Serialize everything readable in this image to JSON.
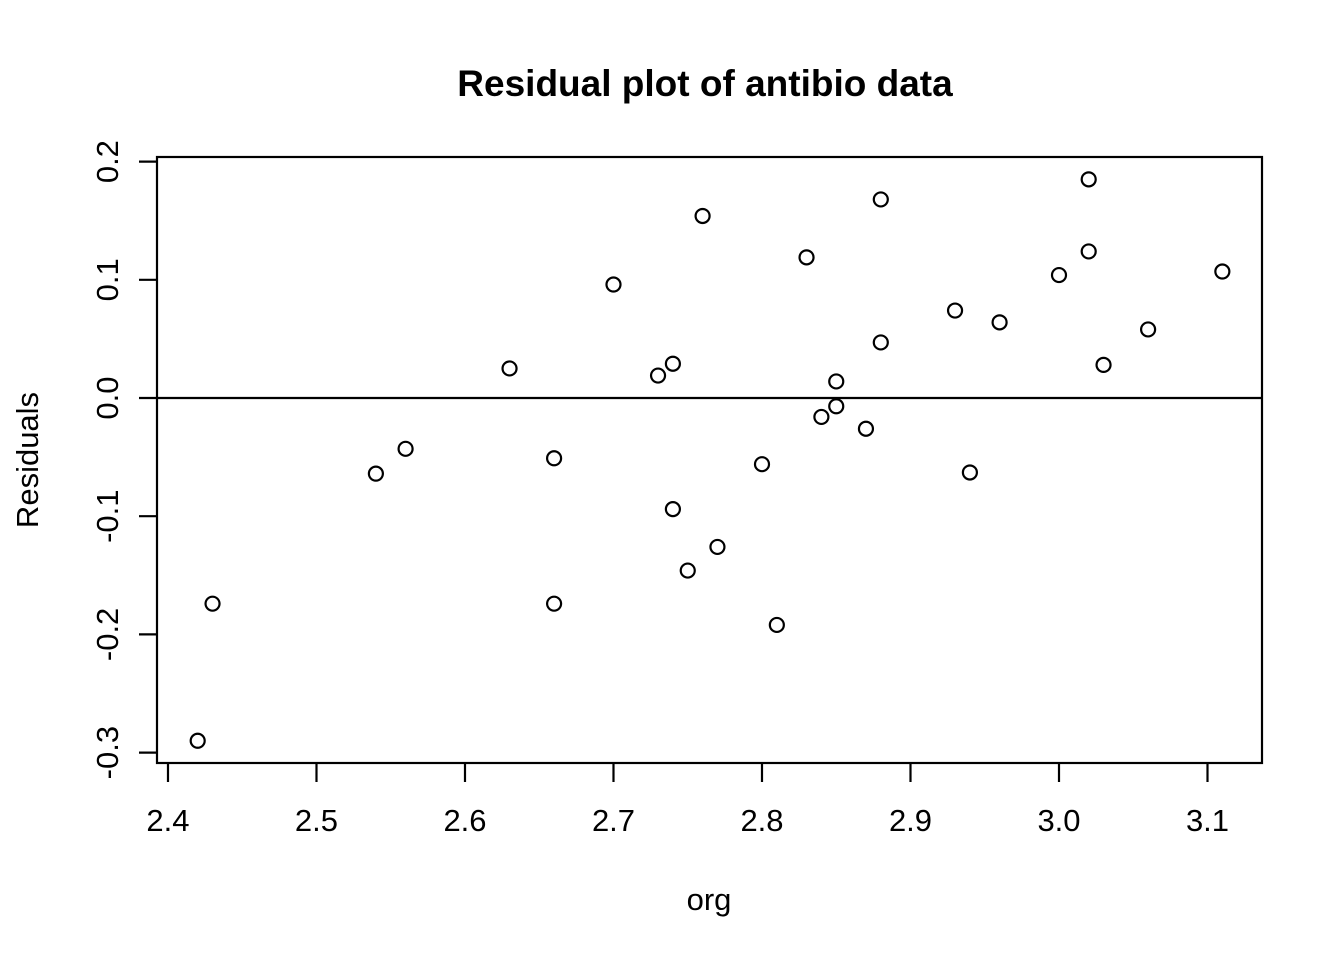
{
  "chart_data": {
    "type": "scatter",
    "title": "Residual plot of antibio data",
    "xlabel": "org",
    "ylabel": "Residuals",
    "marker": "open-circle",
    "grid": false,
    "legend": null,
    "xlim": [
      2.3926,
      3.1367
    ],
    "ylim": [
      -0.3088,
      0.2039
    ],
    "x_ticks": [
      2.4,
      2.5,
      2.6,
      2.7,
      2.8,
      2.9,
      3.0,
      3.1
    ],
    "x_tick_labels": [
      "2.4",
      "2.5",
      "2.6",
      "2.7",
      "2.8",
      "2.9",
      "3.0",
      "3.1"
    ],
    "y_ticks": [
      -0.3,
      -0.2,
      -0.1,
      0.0,
      0.1,
      0.2
    ],
    "y_tick_labels": [
      "-0.3",
      "-0.2",
      "-0.1",
      "0.0",
      "0.1",
      "0.2"
    ],
    "zero_line_y": 0.0,
    "colors": {
      "points": "#000000",
      "axes": "#000000",
      "text": "#000000",
      "background": "#ffffff"
    },
    "points": [
      [
        2.42,
        -0.29
      ],
      [
        2.43,
        -0.174
      ],
      [
        2.54,
        -0.064
      ],
      [
        2.56,
        -0.043
      ],
      [
        2.63,
        0.025
      ],
      [
        2.66,
        -0.051
      ],
      [
        2.66,
        -0.174
      ],
      [
        2.7,
        0.096
      ],
      [
        2.73,
        0.019
      ],
      [
        2.74,
        0.029
      ],
      [
        2.74,
        -0.094
      ],
      [
        2.75,
        -0.146
      ],
      [
        2.76,
        0.154
      ],
      [
        2.77,
        -0.126
      ],
      [
        2.8,
        -0.056
      ],
      [
        2.81,
        -0.192
      ],
      [
        2.83,
        0.119
      ],
      [
        2.84,
        -0.016
      ],
      [
        2.85,
        0.014
      ],
      [
        2.85,
        -0.007
      ],
      [
        2.87,
        -0.026
      ],
      [
        2.88,
        0.168
      ],
      [
        2.88,
        0.047
      ],
      [
        2.93,
        0.074
      ],
      [
        2.94,
        -0.063
      ],
      [
        2.96,
        0.064
      ],
      [
        3.0,
        0.104
      ],
      [
        3.02,
        0.185
      ],
      [
        3.02,
        0.124
      ],
      [
        3.03,
        0.028
      ],
      [
        3.06,
        0.058
      ],
      [
        3.11,
        0.107
      ]
    ]
  }
}
